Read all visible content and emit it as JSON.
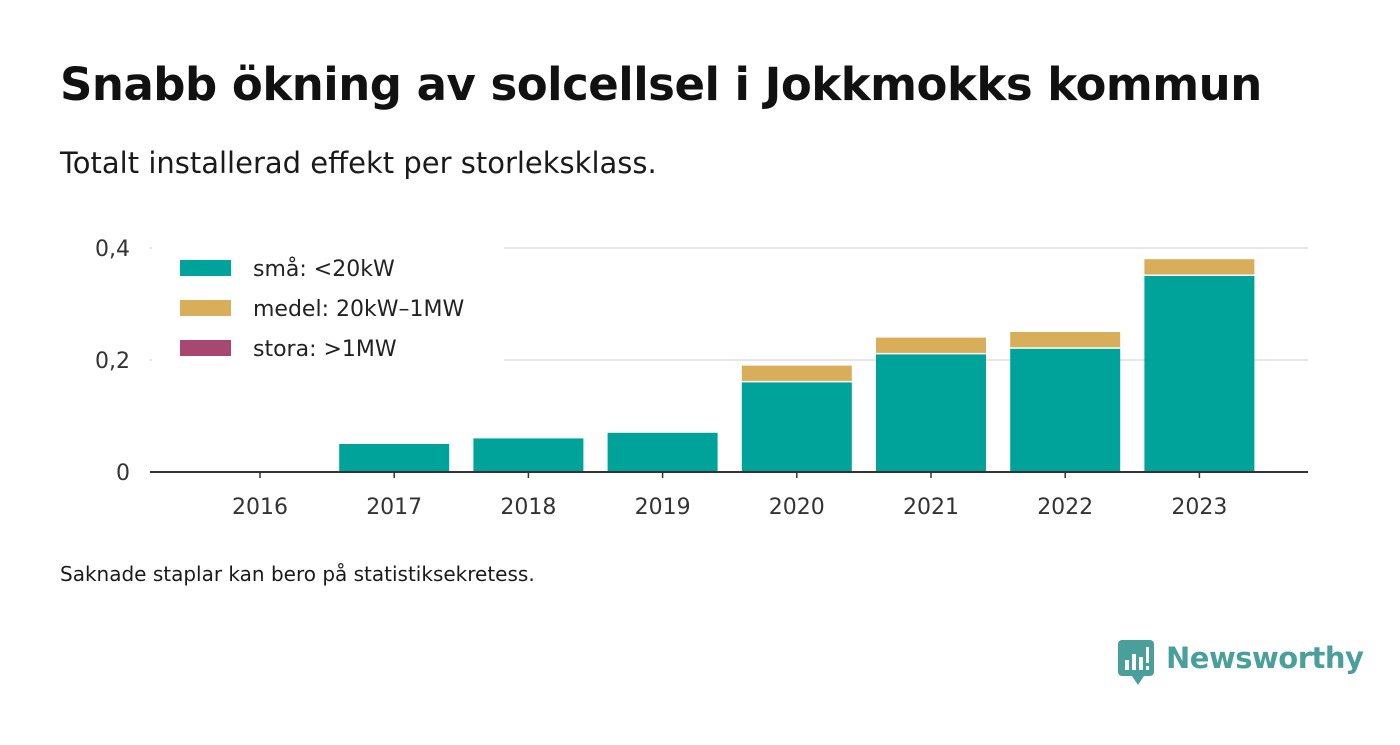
{
  "title": "Snabb ökning av solcellsel i Jokkmokks kommun",
  "subtitle": "Totalt installerad effekt per storleksklass.",
  "footnote": "Saknade staplar kan bero på statistiksekretess.",
  "brand": "Newsworthy",
  "colors": {
    "small": "#00a399",
    "medium": "#d9ae5a",
    "large": "#a64870",
    "grid": "#dddddd",
    "axis": "#333333",
    "brand": "#4a9f9a"
  },
  "chart_data": {
    "type": "bar",
    "stacked": true,
    "categories": [
      "2016",
      "2017",
      "2018",
      "2019",
      "2020",
      "2021",
      "2022",
      "2023"
    ],
    "series": [
      {
        "name": "små: <20kW",
        "color": "#00a399",
        "values": [
          0,
          0.05,
          0.06,
          0.07,
          0.16,
          0.21,
          0.22,
          0.35
        ]
      },
      {
        "name": "medel: 20kW–1MW",
        "color": "#d9ae5a",
        "values": [
          0,
          0,
          0,
          0,
          0.03,
          0.03,
          0.03,
          0.03
        ]
      },
      {
        "name": "stora: >1MW",
        "color": "#a64870",
        "values": [
          0,
          0,
          0,
          0,
          0,
          0,
          0,
          0
        ]
      }
    ],
    "yticks": [
      {
        "value": 0,
        "label": "0"
      },
      {
        "value": 0.2,
        "label": "0,2"
      },
      {
        "value": 0.4,
        "label": "0,4"
      }
    ],
    "ylim": [
      0,
      0.4
    ],
    "grid": true,
    "legend_position": "top-left"
  }
}
